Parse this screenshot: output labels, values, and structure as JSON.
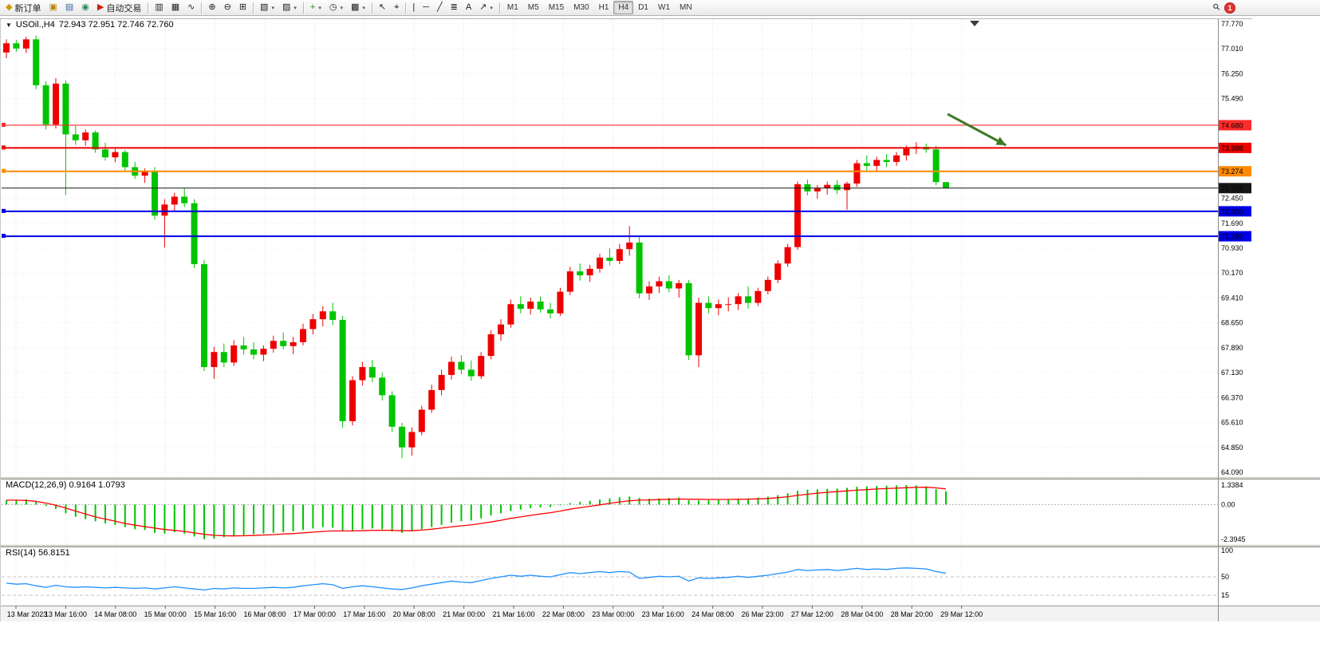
{
  "toolbar": {
    "items": [
      {
        "type": "button",
        "name": "new-order-button",
        "label": "新订单",
        "glyph": "◆",
        "glyph_color": "#cf9a00",
        "icon": "new-order-icon"
      },
      {
        "type": "button",
        "name": "chart-window-button",
        "glyph": "▣",
        "glyph_color": "#b8860b",
        "icon": "chart-window-icon"
      },
      {
        "type": "button",
        "name": "terminal-button",
        "glyph": "▤",
        "glyph_color": "#41699e",
        "icon": "terminal-icon"
      },
      {
        "type": "button",
        "name": "strategy-tester-button",
        "glyph": "◉",
        "glyph_color": "#2e8b57",
        "icon": "strategy-tester-icon"
      },
      {
        "type": "button",
        "name": "auto-trading-button",
        "label": "自动交易",
        "glyph": "▶",
        "glyph_color": "#cc2200",
        "icon": "auto-trading-icon"
      },
      {
        "type": "sep"
      },
      {
        "type": "button",
        "name": "bar-chart-mode-button",
        "glyph": "▥",
        "icon": "bar-chart-icon"
      },
      {
        "type": "button",
        "name": "candlestick-mode-button",
        "glyph": "▦",
        "icon": "candlestick-icon"
      },
      {
        "type": "button",
        "name": "line-chart-mode-button",
        "glyph": "∿",
        "icon": "line-chart-icon"
      },
      {
        "type": "sep"
      },
      {
        "type": "button",
        "name": "zoom-in-button",
        "glyph": "⊕",
        "icon": "zoom-in-icon"
      },
      {
        "type": "button",
        "name": "zoom-out-button",
        "glyph": "⊖",
        "icon": "zoom-out-icon"
      },
      {
        "type": "button",
        "name": "tile-windows-button",
        "glyph": "⊞",
        "icon": "tile-windows-icon"
      },
      {
        "type": "sep"
      },
      {
        "type": "button",
        "name": "new-chart-button",
        "glyph": "▧",
        "caret": true,
        "icon": "new-chart-icon"
      },
      {
        "type": "button",
        "name": "profiles-button",
        "glyph": "▨",
        "caret": true,
        "icon": "profiles-icon"
      },
      {
        "type": "sep"
      },
      {
        "type": "button",
        "name": "indicators-button",
        "glyph": "+",
        "glyph_color": "#0a9a0a",
        "caret": true,
        "icon": "add-indicator-icon"
      },
      {
        "type": "button",
        "name": "periods-button",
        "glyph": "◷",
        "caret": true,
        "icon": "clock-icon"
      },
      {
        "type": "button",
        "name": "templates-button",
        "glyph": "▩",
        "caret": true,
        "icon": "template-icon"
      },
      {
        "type": "sep"
      },
      {
        "type": "button",
        "name": "cursor-button",
        "glyph": "↖",
        "icon": "cursor-icon"
      },
      {
        "type": "button",
        "name": "crosshair-button",
        "glyph": "⌖",
        "icon": "crosshair-icon"
      },
      {
        "type": "sep"
      },
      {
        "type": "button",
        "name": "vertical-line-button",
        "glyph": "|",
        "icon": "vertical-line-icon"
      },
      {
        "type": "button",
        "name": "horizontal-line-button",
        "glyph": "─",
        "icon": "horizontal-line-icon"
      },
      {
        "type": "button",
        "name": "trendline-button",
        "glyph": "╱",
        "icon": "trendline-icon"
      },
      {
        "type": "button",
        "name": "fibonacci-button",
        "glyph": "≣",
        "icon": "fibonacci-icon"
      },
      {
        "type": "button",
        "name": "text-label-button",
        "glyph": "A",
        "icon": "text-icon"
      },
      {
        "type": "button",
        "name": "arrows-button",
        "glyph": "↗",
        "caret": true,
        "icon": "arrows-icon"
      },
      {
        "type": "sep"
      },
      {
        "type": "tf",
        "name": "timeframe-m1-button",
        "label": "M1"
      },
      {
        "type": "tf",
        "name": "timeframe-m5-button",
        "label": "M5"
      },
      {
        "type": "tf",
        "name": "timeframe-m15-button",
        "label": "M15"
      },
      {
        "type": "tf",
        "name": "timeframe-m30-button",
        "label": "M30"
      },
      {
        "type": "tf",
        "name": "timeframe-h1-button",
        "label": "H1"
      },
      {
        "type": "tf",
        "name": "timeframe-h4-button",
        "label": "H4",
        "active": true
      },
      {
        "type": "tf",
        "name": "timeframe-d1-button",
        "label": "D1"
      },
      {
        "type": "tf",
        "name": "timeframe-w1-button",
        "label": "W1"
      },
      {
        "type": "tf",
        "name": "timeframe-mn-button",
        "label": "MN"
      },
      {
        "type": "spacer"
      },
      {
        "type": "button",
        "name": "search-button",
        "glyph": "⚲",
        "icon": "search-icon",
        "cls": "mag"
      },
      {
        "type": "badge",
        "name": "notifications-badge",
        "label": "1"
      }
    ]
  },
  "chart": {
    "symbol_title": "USOil.,H4",
    "ohlc_text": "72.943 72.951 72.746 72.760",
    "price_axis_labels": [
      "77.770",
      "77.010",
      "76.250",
      "75.490",
      "72.450",
      "71.690",
      "70.930",
      "70.170",
      "69.410",
      "68.650",
      "67.890",
      "67.130",
      "66.370",
      "65.610",
      "64.850",
      "64.090"
    ],
    "price_lines": [
      {
        "label": "74.680",
        "value": 74.68,
        "color": "#ff2a2a",
        "width": 1.2,
        "anchor": true
      },
      {
        "label": "73.988",
        "value": 73.988,
        "color": "#ee0000",
        "width": 2,
        "anchor": true
      },
      {
        "label": "73.274",
        "value": 73.274,
        "color": "#ff8a00",
        "width": 2,
        "anchor": true
      },
      {
        "label": "72.760",
        "value": 72.76,
        "color": "#161616",
        "width": 1,
        "anchor": false
      },
      {
        "label": "72.053",
        "value": 72.053,
        "color": "#0000e6",
        "width": 2,
        "anchor": true
      },
      {
        "label": "71.292",
        "value": 71.292,
        "color": "#0000e6",
        "width": 2,
        "anchor": true
      }
    ],
    "time_axis_labels": [
      "13 Mar 2023",
      "13 Mar 16:00",
      "14 Mar 08:00",
      "15 Mar 00:00",
      "15 Mar 16:00",
      "16 Mar 08:00",
      "17 Mar 00:00",
      "17 Mar 16:00",
      "20 Mar 08:00",
      "21 Mar 00:00",
      "21 Mar 16:00",
      "22 Mar 08:00",
      "23 Mar 00:00",
      "23 Mar 16:00",
      "24 Mar 08:00",
      "26 Mar 23:00",
      "27 Mar 12:00",
      "28 Mar 04:00",
      "28 Mar 20:00",
      "29 Mar 12:00"
    ]
  },
  "indicators": {
    "macd_label": "MACD(12,26,9) 0.9164 1.0793",
    "macd_axis_labels": [
      "1.3384",
      "0.00",
      "-2.3945"
    ],
    "rsi_label": "RSI(14) 56.8151",
    "rsi_axis_labels": [
      "100",
      "50",
      "15"
    ]
  },
  "chart_data": {
    "type": "candlestick",
    "symbol": "USOil.",
    "timeframe": "H4",
    "ohlc_current": {
      "open": 72.943,
      "high": 72.951,
      "low": 72.746,
      "close": 72.76
    },
    "price_range": [
      64.09,
      77.77
    ],
    "up_color": "#ee0000",
    "down_color": "#00c400",
    "candles": [
      [
        76.9,
        77.3,
        76.72,
        77.18
      ],
      [
        77.18,
        77.28,
        76.92,
        77.02
      ],
      [
        77.02,
        77.38,
        76.88,
        77.3
      ],
      [
        77.3,
        77.42,
        75.78,
        75.9
      ],
      [
        75.9,
        76.02,
        74.55,
        74.7
      ],
      [
        74.7,
        76.12,
        74.58,
        75.95
      ],
      [
        75.95,
        76.05,
        72.55,
        74.4
      ],
      [
        74.4,
        74.66,
        74.08,
        74.22
      ],
      [
        74.22,
        74.55,
        74.05,
        74.46
      ],
      [
        74.46,
        74.52,
        73.84,
        73.94
      ],
      [
        73.94,
        74.15,
        73.6,
        73.7
      ],
      [
        73.7,
        73.96,
        73.55,
        73.86
      ],
      [
        73.86,
        73.92,
        73.3,
        73.4
      ],
      [
        73.4,
        73.56,
        73.04,
        73.14
      ],
      [
        73.14,
        73.36,
        72.92,
        73.26
      ],
      [
        73.26,
        73.4,
        71.8,
        71.92
      ],
      [
        71.92,
        72.42,
        70.95,
        72.26
      ],
      [
        72.26,
        72.62,
        72.06,
        72.5
      ],
      [
        72.5,
        72.76,
        72.18,
        72.3
      ],
      [
        72.3,
        72.42,
        70.32,
        70.44
      ],
      [
        70.44,
        70.56,
        67.18,
        67.3
      ],
      [
        67.3,
        67.92,
        66.94,
        67.76
      ],
      [
        67.76,
        68.02,
        67.3,
        67.44
      ],
      [
        67.44,
        68.12,
        67.34,
        67.96
      ],
      [
        67.96,
        68.22,
        67.68,
        67.84
      ],
      [
        67.84,
        68.06,
        67.54,
        67.68
      ],
      [
        67.68,
        67.96,
        67.48,
        67.86
      ],
      [
        67.86,
        68.26,
        67.74,
        68.1
      ],
      [
        68.1,
        68.36,
        67.84,
        67.94
      ],
      [
        67.94,
        68.22,
        67.7,
        68.06
      ],
      [
        68.06,
        68.62,
        67.96,
        68.46
      ],
      [
        68.46,
        68.92,
        68.3,
        68.76
      ],
      [
        68.76,
        69.16,
        68.54,
        69.0
      ],
      [
        69.0,
        69.26,
        68.58,
        68.74
      ],
      [
        68.74,
        68.86,
        65.45,
        65.65
      ],
      [
        65.65,
        67.02,
        65.52,
        66.9
      ],
      [
        66.9,
        67.46,
        66.74,
        67.3
      ],
      [
        67.3,
        67.52,
        66.84,
        66.98
      ],
      [
        66.98,
        67.14,
        66.28,
        66.44
      ],
      [
        66.44,
        66.56,
        65.32,
        65.48
      ],
      [
        65.48,
        65.6,
        64.52,
        64.85
      ],
      [
        64.85,
        65.46,
        64.6,
        65.32
      ],
      [
        65.32,
        66.12,
        65.22,
        66.0
      ],
      [
        66.0,
        66.76,
        65.9,
        66.6
      ],
      [
        66.6,
        67.22,
        66.44,
        67.06
      ],
      [
        67.06,
        67.62,
        66.92,
        67.46
      ],
      [
        67.46,
        67.66,
        67.08,
        67.22
      ],
      [
        67.22,
        67.5,
        66.88,
        67.02
      ],
      [
        67.02,
        67.76,
        66.94,
        67.64
      ],
      [
        67.64,
        68.42,
        67.54,
        68.3
      ],
      [
        68.3,
        68.76,
        68.1,
        68.6
      ],
      [
        68.6,
        69.36,
        68.5,
        69.22
      ],
      [
        69.22,
        69.46,
        68.94,
        69.08
      ],
      [
        69.08,
        69.42,
        68.9,
        69.3
      ],
      [
        69.3,
        69.46,
        68.96,
        69.06
      ],
      [
        69.06,
        69.26,
        68.78,
        68.94
      ],
      [
        68.94,
        69.72,
        68.86,
        69.6
      ],
      [
        69.6,
        70.36,
        69.5,
        70.22
      ],
      [
        70.22,
        70.46,
        69.94,
        70.1
      ],
      [
        70.1,
        70.42,
        69.9,
        70.3
      ],
      [
        70.3,
        70.76,
        70.18,
        70.64
      ],
      [
        70.64,
        70.92,
        70.4,
        70.54
      ],
      [
        70.54,
        71.06,
        70.44,
        70.9
      ],
      [
        70.9,
        71.6,
        70.7,
        71.1
      ],
      [
        71.1,
        71.26,
        69.4,
        69.55
      ],
      [
        69.55,
        69.92,
        69.35,
        69.76
      ],
      [
        69.76,
        70.06,
        69.56,
        69.92
      ],
      [
        69.92,
        70.1,
        69.58,
        69.7
      ],
      [
        69.7,
        69.96,
        69.42,
        69.86
      ],
      [
        69.86,
        69.96,
        67.52,
        67.66
      ],
      [
        67.66,
        69.42,
        67.3,
        69.26
      ],
      [
        69.26,
        69.46,
        68.94,
        69.1
      ],
      [
        69.1,
        69.36,
        68.88,
        69.22
      ],
      [
        69.22,
        69.42,
        69.0,
        69.22
      ],
      [
        69.22,
        69.56,
        69.04,
        69.46
      ],
      [
        69.46,
        69.76,
        69.08,
        69.26
      ],
      [
        69.26,
        69.72,
        69.16,
        69.62
      ],
      [
        69.62,
        70.06,
        69.52,
        69.96
      ],
      [
        69.96,
        70.56,
        69.86,
        70.46
      ],
      [
        70.46,
        71.06,
        70.36,
        70.96
      ],
      [
        70.96,
        72.96,
        70.88,
        72.88
      ],
      [
        72.88,
        73.02,
        72.54,
        72.66
      ],
      [
        72.66,
        72.86,
        72.44,
        72.76
      ],
      [
        72.76,
        72.96,
        72.56,
        72.86
      ],
      [
        72.86,
        73.0,
        72.58,
        72.7
      ],
      [
        72.7,
        72.96,
        72.1,
        72.9
      ],
      [
        72.9,
        73.62,
        72.8,
        73.52
      ],
      [
        73.52,
        73.76,
        73.3,
        73.44
      ],
      [
        73.44,
        73.72,
        73.26,
        73.62
      ],
      [
        73.62,
        73.8,
        73.4,
        73.56
      ],
      [
        73.56,
        73.86,
        73.44,
        73.76
      ],
      [
        73.76,
        74.06,
        73.6,
        73.96
      ],
      [
        73.96,
        74.16,
        73.8,
        74.02
      ],
      [
        74.02,
        74.12,
        73.84,
        73.94
      ],
      [
        73.94,
        74.05,
        72.85,
        72.943
      ],
      [
        72.943,
        72.951,
        72.746,
        72.76
      ]
    ],
    "macd": {
      "params": "12,26,9",
      "main_value": 0.9164,
      "signal_value": 1.0793,
      "range": [
        -2.3945,
        1.3384
      ],
      "histogram_color": "#00c400",
      "signal_color": "#ff0000",
      "histogram": [
        0.3,
        0.32,
        0.35,
        0.2,
        -0.1,
        -0.3,
        -0.6,
        -0.85,
        -1.0,
        -1.15,
        -1.3,
        -1.4,
        -1.55,
        -1.7,
        -1.75,
        -1.95,
        -2.0,
        -1.9,
        -2.0,
        -2.2,
        -2.39,
        -2.35,
        -2.25,
        -2.15,
        -2.1,
        -2.05,
        -2.0,
        -1.95,
        -1.9,
        -1.85,
        -1.75,
        -1.65,
        -1.55,
        -1.6,
        -1.85,
        -1.8,
        -1.7,
        -1.65,
        -1.7,
        -1.85,
        -1.95,
        -1.85,
        -1.7,
        -1.55,
        -1.4,
        -1.25,
        -1.15,
        -1.1,
        -0.95,
        -0.75,
        -0.6,
        -0.45,
        -0.35,
        -0.25,
        -0.2,
        -0.18,
        -0.05,
        0.1,
        0.18,
        0.25,
        0.35,
        0.42,
        0.5,
        0.55,
        0.45,
        0.4,
        0.42,
        0.45,
        0.48,
        0.3,
        0.28,
        0.3,
        0.32,
        0.35,
        0.4,
        0.42,
        0.48,
        0.55,
        0.65,
        0.78,
        0.95,
        1.02,
        1.05,
        1.08,
        1.1,
        1.15,
        1.22,
        1.25,
        1.28,
        1.3,
        1.32,
        1.3384,
        1.32,
        1.25,
        1.05,
        0.9164
      ],
      "signal": [
        0.3,
        0.3,
        0.28,
        0.22,
        0.1,
        -0.05,
        -0.25,
        -0.45,
        -0.65,
        -0.85,
        -1.0,
        -1.15,
        -1.3,
        -1.42,
        -1.52,
        -1.62,
        -1.72,
        -1.78,
        -1.85,
        -1.95,
        -2.05,
        -2.12,
        -2.15,
        -2.16,
        -2.15,
        -2.13,
        -2.1,
        -2.07,
        -2.03,
        -2.0,
        -1.95,
        -1.9,
        -1.85,
        -1.82,
        -1.82,
        -1.82,
        -1.8,
        -1.78,
        -1.77,
        -1.78,
        -1.8,
        -1.8,
        -1.76,
        -1.7,
        -1.62,
        -1.54,
        -1.46,
        -1.4,
        -1.3,
        -1.2,
        -1.08,
        -0.95,
        -0.85,
        -0.75,
        -0.65,
        -0.56,
        -0.45,
        -0.32,
        -0.22,
        -0.12,
        -0.02,
        0.08,
        0.18,
        0.26,
        0.3,
        0.32,
        0.34,
        0.36,
        0.38,
        0.37,
        0.36,
        0.35,
        0.35,
        0.35,
        0.36,
        0.37,
        0.39,
        0.42,
        0.47,
        0.54,
        0.63,
        0.71,
        0.78,
        0.84,
        0.89,
        0.94,
        0.99,
        1.03,
        1.07,
        1.1,
        1.13,
        1.16,
        1.18,
        1.19,
        1.15,
        1.0793
      ]
    },
    "rsi": {
      "period": 14,
      "current": 56.8151,
      "line_color": "#1e90ff",
      "levels": [
        50,
        15
      ],
      "scale": [
        0,
        100
      ],
      "values": [
        38,
        36,
        37,
        33,
        30,
        34,
        31,
        30,
        31,
        30,
        29,
        30,
        29,
        28,
        29,
        27,
        29,
        31,
        29,
        27,
        25,
        28,
        27,
        29,
        28,
        28,
        29,
        30,
        29,
        30,
        33,
        35,
        37,
        35,
        28,
        31,
        33,
        31,
        29,
        27,
        26,
        29,
        33,
        36,
        39,
        42,
        40,
        39,
        43,
        47,
        50,
        53,
        51,
        53,
        51,
        50,
        54,
        58,
        56,
        58,
        60,
        58,
        60,
        59,
        47,
        49,
        51,
        50,
        51,
        42,
        48,
        47,
        48,
        49,
        51,
        49,
        51,
        53,
        56,
        59,
        64,
        62,
        63,
        64,
        62,
        64,
        66,
        64,
        65,
        64,
        66,
        67,
        66,
        65,
        60,
        56.8151
      ]
    },
    "annotations": [
      {
        "type": "arrow",
        "color": "#3d7a23",
        "from": {
          "x_frac": 0.778,
          "price": 75.02
        },
        "to": {
          "x_frac": 0.826,
          "price": 74.07
        }
      }
    ]
  }
}
